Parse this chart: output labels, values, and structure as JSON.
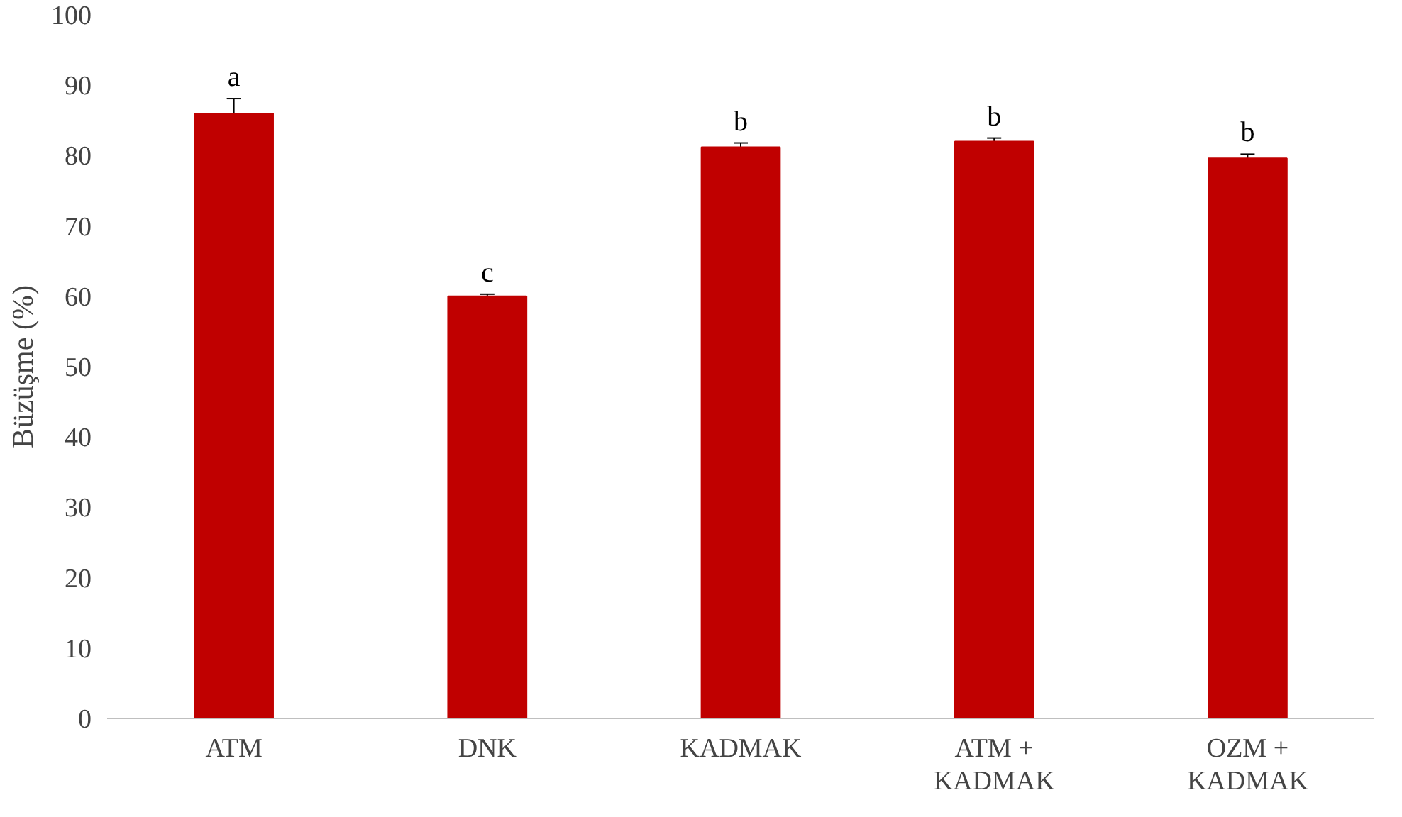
{
  "chart_data": {
    "type": "bar",
    "ylabel": "Büzüşme (%)",
    "categories": [
      "ATM",
      "DNK",
      "KADMAK",
      "ATM +\nKADMAK",
      "OZM +\nKADMAK"
    ],
    "values": [
      86.0,
      60.0,
      81.2,
      82.0,
      79.6
    ],
    "errors": [
      2.1,
      0.3,
      0.6,
      0.5,
      0.6
    ],
    "color": "#c00000",
    "ylim": [
      0,
      100
    ],
    "yticks": [
      0,
      10,
      20,
      30,
      40,
      50,
      60,
      70,
      80,
      90,
      100
    ],
    "grid": false,
    "annotations": [
      {
        "text": "a",
        "x": "ATM",
        "y": 88.1
      },
      {
        "text": "c",
        "x": "DNK",
        "y": 60.3
      },
      {
        "text": "b",
        "x": "KADMAK",
        "y": 81.8
      },
      {
        "text": "b",
        "x": "ATM +\nKADMAK",
        "y": 82.5
      },
      {
        "text": "b",
        "x": "OZM +\nKADMAK",
        "y": 80.2
      }
    ]
  }
}
